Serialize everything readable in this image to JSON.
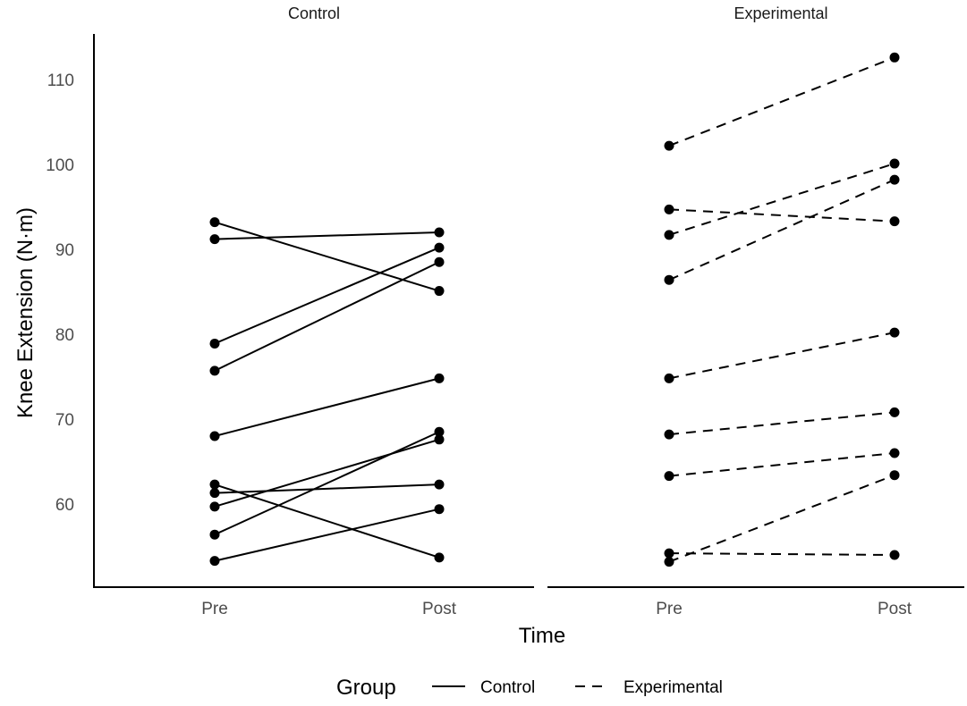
{
  "chart_data": {
    "type": "line",
    "ylabel": "Knee Extension (N·m)",
    "xlabel": "Time",
    "x_categories": [
      "Pre",
      "Post"
    ],
    "y_ticks": [
      60,
      70,
      80,
      90,
      100,
      110
    ],
    "ylim": [
      52,
      116
    ],
    "grid": false,
    "legend": {
      "title": "Group",
      "placement": "bottom",
      "entries": [
        {
          "label": "Control",
          "linetype": "solid"
        },
        {
          "label": "Experimental",
          "linetype": "dashed"
        }
      ]
    },
    "panels": [
      {
        "title": "Control",
        "linetype": "solid",
        "subjects": [
          [
            93.2,
            85.1
          ],
          [
            91.2,
            92.0
          ],
          [
            78.9,
            90.2
          ],
          [
            75.7,
            88.5
          ],
          [
            68.0,
            74.8
          ],
          [
            62.3,
            53.7
          ],
          [
            61.3,
            62.3
          ],
          [
            59.7,
            67.6
          ],
          [
            56.4,
            68.5
          ],
          [
            53.3,
            59.4
          ]
        ]
      },
      {
        "title": "Experimental",
        "linetype": "dashed",
        "subjects": [
          [
            102.2,
            112.6
          ],
          [
            94.7,
            93.3
          ],
          [
            91.7,
            100.1
          ],
          [
            86.4,
            98.2
          ],
          [
            74.8,
            80.2
          ],
          [
            68.2,
            70.8
          ],
          [
            63.3,
            66.0
          ],
          [
            54.2,
            54.0
          ],
          [
            53.2,
            63.4
          ]
        ]
      }
    ],
    "colors": {
      "line": "#000000",
      "tick_text": "#4d4d4d"
    }
  }
}
